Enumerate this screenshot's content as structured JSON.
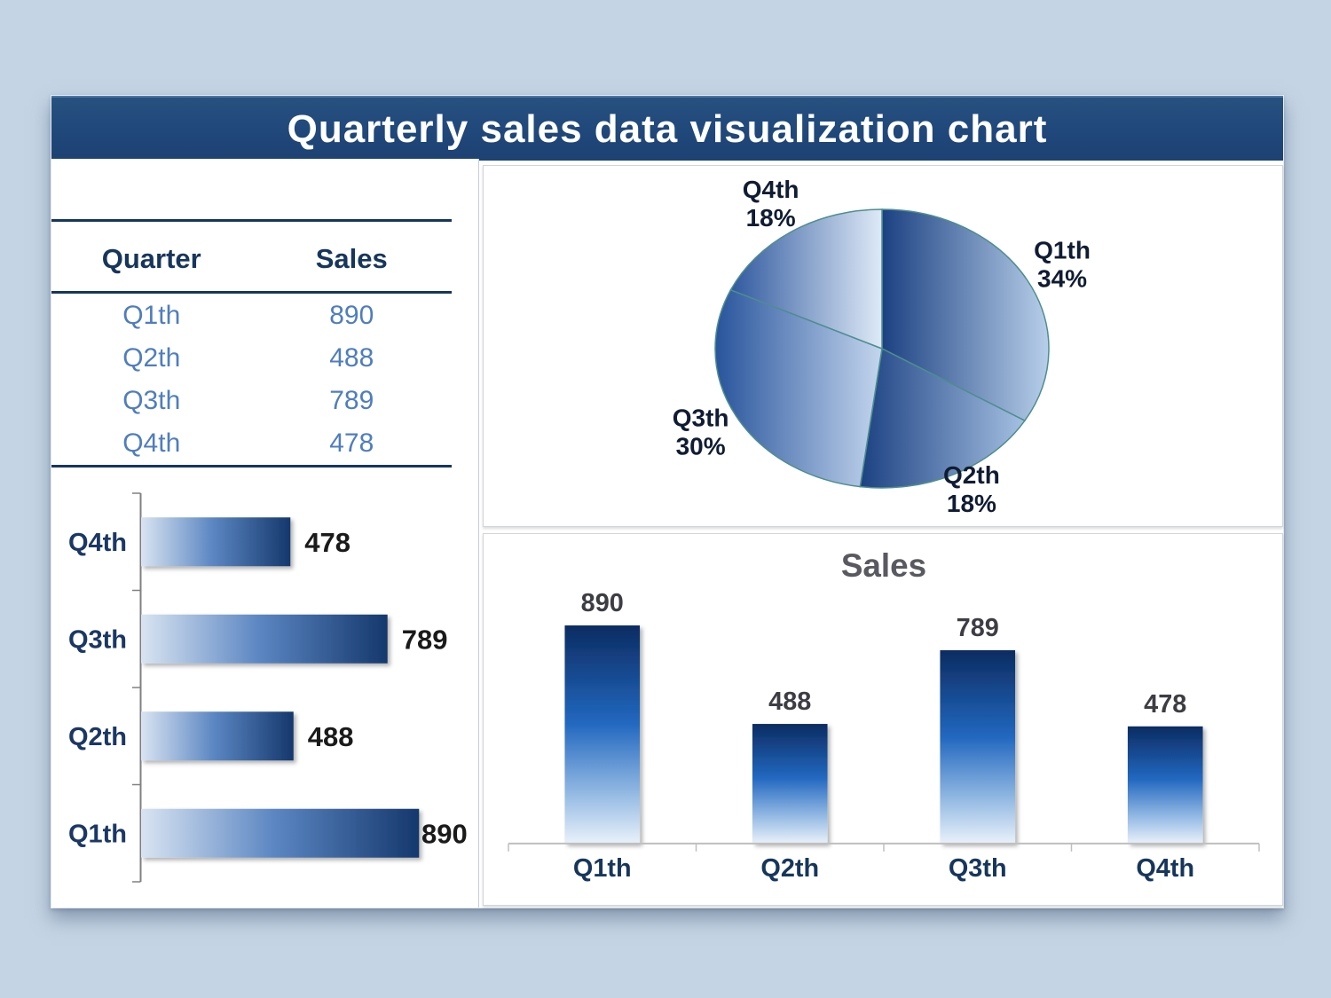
{
  "banner": {
    "title": "Quarterly sales data visualization chart",
    "bg": "#21497C",
    "text_color": "#FFFFFF"
  },
  "table": {
    "headers": [
      "Quarter",
      "Sales"
    ],
    "rows": [
      [
        "Q1th",
        "890"
      ],
      [
        "Q2th",
        "488"
      ],
      [
        "Q3th",
        "789"
      ],
      [
        "Q4th",
        "478"
      ]
    ],
    "header_color": "#17365D",
    "value_color": "#4F7DBF",
    "rule_color": "#17365D"
  },
  "chart_data": [
    {
      "id": "pie",
      "type": "pie",
      "categories": [
        "Q1th",
        "Q2th",
        "Q3th",
        "Q4th"
      ],
      "values": [
        890,
        488,
        789,
        478
      ],
      "percent_labels": [
        "34%",
        "18%",
        "30%",
        "18%"
      ],
      "start_angle_deg": 0,
      "direction": "clockwise",
      "label_color": "#101C33",
      "slice_gradients": [
        [
          "#1C4182",
          "#B8CFEA"
        ],
        [
          "#1C4182",
          "#A5C0E2"
        ],
        [
          "#28549C",
          "#C4D6EE"
        ],
        [
          "#30599F",
          "#DFEAF7"
        ]
      ],
      "stroke": "#4D8E8E",
      "legend_position": "outside-labels"
    },
    {
      "id": "hbar",
      "type": "bar",
      "orientation": "horizontal",
      "categories": [
        "Q4th",
        "Q3th",
        "Q2th",
        "Q1th"
      ],
      "values": [
        478,
        789,
        488,
        890
      ],
      "xlim": [
        0,
        1000
      ],
      "grid": false,
      "axis_color": "#808080",
      "category_color": "#1B3765",
      "value_color": "#1A1A1A",
      "bar_gradient": [
        "#D9E4F2",
        "#5B86C2",
        "#15386D"
      ]
    },
    {
      "id": "vbar",
      "type": "bar",
      "orientation": "vertical",
      "title": "Sales",
      "title_color": "#595960",
      "categories": [
        "Q1th",
        "Q2th",
        "Q3th",
        "Q4th"
      ],
      "values": [
        890,
        488,
        789,
        478
      ],
      "ylim": [
        0,
        1000
      ],
      "grid": false,
      "axis_color": "#BFBFBF",
      "category_color": "#17365D",
      "value_color": "#3D3D44",
      "bar_gradient": [
        "#0C2C62",
        "#2268C0",
        "#97BCE4",
        "#E9F1FA"
      ]
    }
  ]
}
